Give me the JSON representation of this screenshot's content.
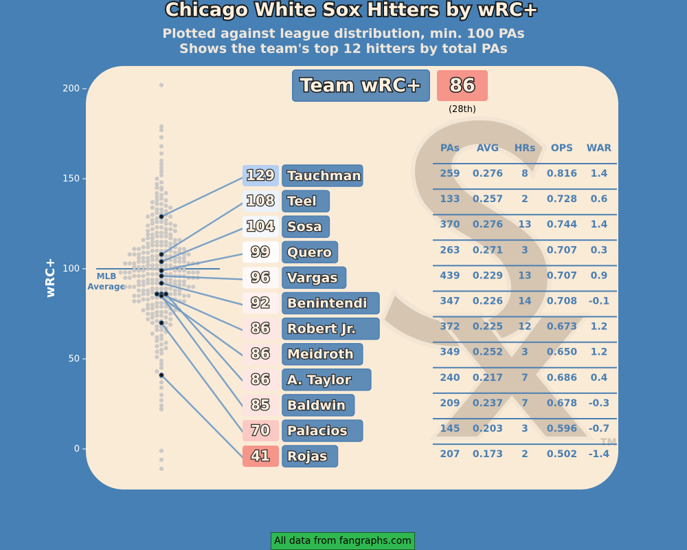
{
  "title": "Chicago White Sox Hitters by wRC+",
  "subtitle_line1": "Plotted against league distribution, min. 100 PAs",
  "subtitle_line2": "Shows the team's top 12 hitters by total PAs",
  "team_box": {
    "label": "Team wRC+",
    "value": "86",
    "rank": "(28th)"
  },
  "mlb_avg_label": [
    "MLB",
    "Average"
  ],
  "footer": "All data from fangraphs.com",
  "trademark": "TM",
  "colors": {
    "background": "#4680b4",
    "panel": "#faebd7",
    "label_box": "#5f8cb7",
    "text_blue": "#4a7fb2",
    "good": "#b4cef0",
    "bad": "#f6958a"
  },
  "table_headers": [
    "PAs",
    "AVG",
    "HRs",
    "OPS",
    "WAR"
  ],
  "chart_data": {
    "type": "scatter",
    "ylabel": "wRC+",
    "ylim": [
      -14,
      210
    ],
    "yticks": [
      0,
      50,
      100,
      150,
      200
    ],
    "mlb_average": 100,
    "players": [
      {
        "name": "Tauchman",
        "wrc": 129,
        "pa": "259",
        "avg": "0.276",
        "hr": "8",
        "ops": "0.816",
        "war": "1.4"
      },
      {
        "name": "Teel",
        "wrc": 108,
        "pa": "133",
        "avg": "0.257",
        "hr": "2",
        "ops": "0.728",
        "war": "0.6"
      },
      {
        "name": "Sosa",
        "wrc": 104,
        "pa": "370",
        "avg": "0.276",
        "hr": "13",
        "ops": "0.744",
        "war": "1.4"
      },
      {
        "name": "Quero",
        "wrc": 99,
        "pa": "263",
        "avg": "0.271",
        "hr": "3",
        "ops": "0.707",
        "war": "0.3"
      },
      {
        "name": "Vargas",
        "wrc": 96,
        "pa": "439",
        "avg": "0.229",
        "hr": "13",
        "ops": "0.707",
        "war": "0.9"
      },
      {
        "name": "Benintendi",
        "wrc": 92,
        "pa": "347",
        "avg": "0.226",
        "hr": "14",
        "ops": "0.708",
        "war": "-0.1"
      },
      {
        "name": "Robert Jr.",
        "wrc": 86,
        "pa": "372",
        "avg": "0.225",
        "hr": "12",
        "ops": "0.673",
        "war": "1.2"
      },
      {
        "name": "Meidroth",
        "wrc": 86,
        "pa": "349",
        "avg": "0.252",
        "hr": "3",
        "ops": "0.650",
        "war": "1.2"
      },
      {
        "name": "A. Taylor",
        "wrc": 86,
        "pa": "240",
        "avg": "0.217",
        "hr": "7",
        "ops": "0.686",
        "war": "0.4"
      },
      {
        "name": "Baldwin",
        "wrc": 85,
        "pa": "209",
        "avg": "0.237",
        "hr": "7",
        "ops": "0.678",
        "war": "-0.3"
      },
      {
        "name": "Palacios",
        "wrc": 70,
        "pa": "145",
        "avg": "0.203",
        "hr": "3",
        "ops": "0.596",
        "war": "-0.7"
      },
      {
        "name": "Rojas",
        "wrc": 41,
        "pa": "207",
        "avg": "0.173",
        "hr": "2",
        "ops": "0.502",
        "war": "-1.4"
      }
    ],
    "league_values": [
      202,
      179,
      177,
      173,
      168,
      164,
      160,
      158,
      156,
      154,
      152,
      150,
      148,
      147,
      145,
      145,
      144,
      142,
      142,
      141,
      140,
      139,
      138,
      138,
      137,
      136,
      136,
      135,
      134,
      134,
      133,
      133,
      132,
      131,
      131,
      130,
      130,
      129,
      129,
      128,
      128,
      127,
      127,
      126,
      126,
      125,
      125,
      125,
      124,
      124,
      123,
      123,
      122,
      122,
      122,
      121,
      121,
      120,
      120,
      120,
      119,
      119,
      119,
      118,
      118,
      118,
      117,
      117,
      117,
      116,
      116,
      116,
      115,
      115,
      115,
      115,
      114,
      114,
      114,
      113,
      113,
      113,
      113,
      112,
      112,
      112,
      112,
      111,
      111,
      111,
      111,
      110,
      110,
      110,
      110,
      110,
      109,
      109,
      109,
      109,
      108,
      108,
      108,
      108,
      108,
      107,
      107,
      107,
      107,
      107,
      106,
      106,
      106,
      106,
      106,
      106,
      105,
      105,
      105,
      105,
      105,
      104,
      104,
      104,
      104,
      104,
      104,
      103,
      103,
      103,
      103,
      103,
      103,
      102,
      102,
      102,
      102,
      102,
      102,
      101,
      101,
      101,
      101,
      101,
      101,
      100,
      100,
      100,
      100,
      100,
      100,
      99,
      99,
      99,
      99,
      99,
      99,
      98,
      98,
      98,
      98,
      98,
      98,
      97,
      97,
      97,
      97,
      97,
      97,
      96,
      96,
      96,
      96,
      96,
      96,
      95,
      95,
      95,
      95,
      95,
      94,
      94,
      94,
      94,
      94,
      94,
      93,
      93,
      93,
      93,
      93,
      92,
      92,
      92,
      92,
      92,
      92,
      91,
      91,
      91,
      91,
      91,
      90,
      90,
      90,
      90,
      90,
      89,
      89,
      89,
      89,
      89,
      88,
      88,
      88,
      88,
      88,
      87,
      87,
      87,
      87,
      86,
      86,
      86,
      86,
      86,
      85,
      85,
      85,
      85,
      84,
      84,
      84,
      84,
      83,
      83,
      83,
      83,
      82,
      82,
      82,
      82,
      81,
      81,
      81,
      80,
      80,
      80,
      80,
      79,
      79,
      79,
      78,
      78,
      78,
      77,
      77,
      77,
      76,
      76,
      76,
      75,
      75,
      75,
      74,
      74,
      73,
      73,
      72,
      72,
      71,
      71,
      70,
      70,
      69,
      68,
      68,
      67,
      66,
      66,
      65,
      64,
      63,
      62,
      61,
      60,
      59,
      58,
      57,
      56,
      55,
      54,
      53,
      51,
      49,
      47,
      45,
      43,
      40,
      37,
      34,
      30,
      27,
      24,
      22,
      -1,
      -6,
      -11
    ]
  }
}
